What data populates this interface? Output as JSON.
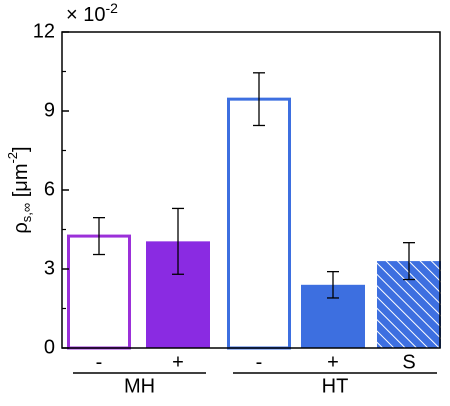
{
  "chart_data": {
    "type": "bar",
    "categories": [
      "-",
      "+",
      "-",
      "+",
      "S"
    ],
    "groups": [
      {
        "label": "MH",
        "from": 0,
        "to": 1
      },
      {
        "label": "HT",
        "from": 2,
        "to": 4
      }
    ],
    "values": [
      4.25,
      4.05,
      9.45,
      2.4,
      3.3
    ],
    "errors": [
      0.7,
      1.25,
      1.0,
      0.5,
      0.7
    ],
    "colors": [
      "#9b30d9",
      "#8a2be2",
      "#3d6fe0",
      "#3d6fe0",
      "#3d6fe0"
    ],
    "styles": [
      "outline",
      "solid",
      "outline",
      "solid",
      "hatch"
    ],
    "y_label_parts": [
      "ρ",
      "s,∞",
      " [μm",
      "-2",
      "]"
    ],
    "y_multiplier": [
      "× 10",
      "-2"
    ],
    "ylim": [
      0,
      12
    ],
    "yticks": [
      0,
      3,
      6,
      9,
      12
    ],
    "yminor": [
      1.5,
      4.5,
      7.5,
      10.5
    ]
  }
}
